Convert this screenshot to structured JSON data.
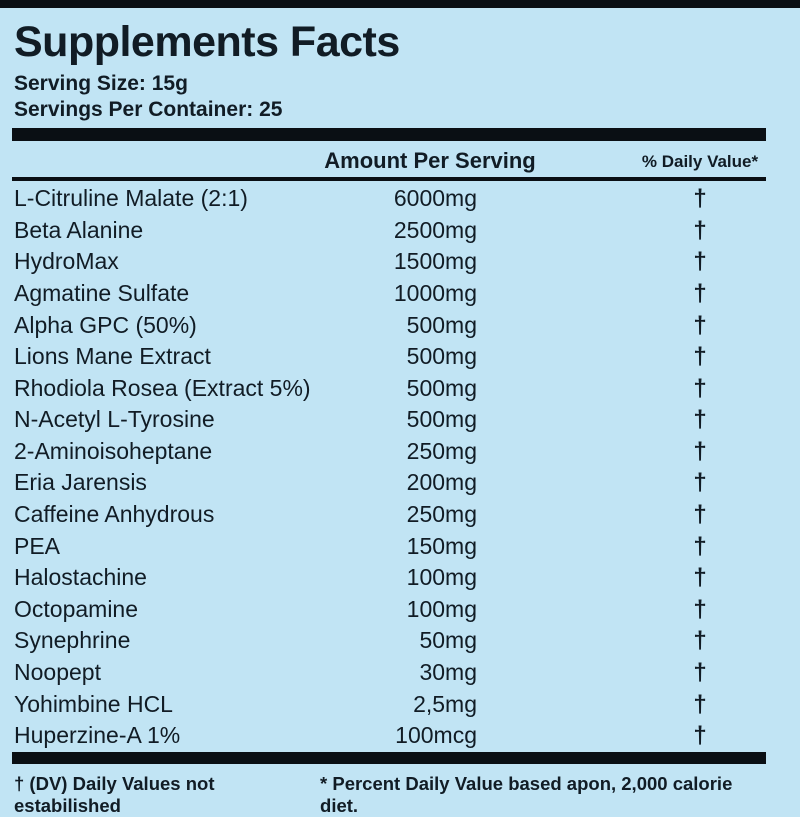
{
  "label": {
    "title": "Supplements Facts",
    "serving_size": "Serving Size: 15g",
    "servings_per_container": "Servings Per Container: 25"
  },
  "table": {
    "headers": {
      "amount": "Amount Per Serving",
      "daily_value": "% Daily Value*"
    },
    "rows": [
      {
        "name": "L-Citruline Malate (2:1)",
        "amount": "6000mg",
        "dv": "†"
      },
      {
        "name": "Beta Alanine",
        "amount": "2500mg",
        "dv": "†"
      },
      {
        "name": "HydroMax",
        "amount": "1500mg",
        "dv": "†"
      },
      {
        "name": "Agmatine Sulfate",
        "amount": "1000mg",
        "dv": "†"
      },
      {
        "name": "Alpha GPC (50%)",
        "amount": "500mg",
        "dv": "†"
      },
      {
        "name": "Lions Mane Extract",
        "amount": "500mg",
        "dv": "†"
      },
      {
        "name": "Rhodiola Rosea (Extract 5%)",
        "amount": "500mg",
        "dv": "†"
      },
      {
        "name": "N-Acetyl L-Tyrosine",
        "amount": "500mg",
        "dv": "†"
      },
      {
        "name": "2-Aminoisoheptane",
        "amount": "250mg",
        "dv": "†"
      },
      {
        "name": "Eria Jarensis",
        "amount": "200mg",
        "dv": "†"
      },
      {
        "name": "Caffeine Anhydrous",
        "amount": "250mg",
        "dv": "†"
      },
      {
        "name": "PEA",
        "amount": "150mg",
        "dv": "†"
      },
      {
        "name": "Halostachine",
        "amount": "100mg",
        "dv": "†"
      },
      {
        "name": "Octopamine",
        "amount": "100mg",
        "dv": "†"
      },
      {
        "name": "Synephrine",
        "amount": "50mg",
        "dv": "†"
      },
      {
        "name": "Noopept",
        "amount": "30mg",
        "dv": "†"
      },
      {
        "name": "Yohimbine HCL",
        "amount": "2,5mg",
        "dv": "†"
      },
      {
        "name": "Huperzine-A 1%",
        "amount": "100mcg",
        "dv": "†"
      }
    ]
  },
  "footnotes": {
    "left": "† (DV) Daily Values not estabilished",
    "right": "* Percent Daily Value based apon, 2,000 calorie diet."
  },
  "colors": {
    "background": "#c1e4f4",
    "text": "#111c25",
    "bar": "#0a0f14"
  }
}
